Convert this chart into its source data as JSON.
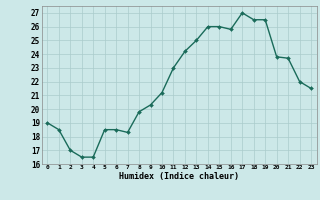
{
  "x": [
    0,
    1,
    2,
    3,
    4,
    5,
    6,
    7,
    8,
    9,
    10,
    11,
    12,
    13,
    14,
    15,
    16,
    17,
    18,
    19,
    20,
    21,
    22,
    23
  ],
  "y": [
    19,
    18.5,
    17,
    16.5,
    16.5,
    18.5,
    18.5,
    18.3,
    19.8,
    20.3,
    21.2,
    23,
    24.2,
    25,
    26,
    26,
    25.8,
    27,
    26.5,
    26.5,
    23.8,
    23.7,
    22,
    21.5
  ],
  "xlabel": "Humidex (Indice chaleur)",
  "xlim": [
    -0.5,
    23.5
  ],
  "ylim": [
    16,
    27.5
  ],
  "yticks": [
    16,
    17,
    18,
    19,
    20,
    21,
    22,
    23,
    24,
    25,
    26,
    27
  ],
  "xtick_labels": [
    "0",
    "1",
    "2",
    "3",
    "4",
    "5",
    "6",
    "7",
    "8",
    "9",
    "10",
    "11",
    "12",
    "13",
    "14",
    "15",
    "16",
    "17",
    "18",
    "19",
    "20",
    "21",
    "22",
    "23"
  ],
  "line_color": "#1a6b5a",
  "marker_color": "#1a6b5a",
  "bg_color": "#cce8e8",
  "grid_color": "#aacccc",
  "marker_size": 2.0,
  "line_width": 1.0
}
